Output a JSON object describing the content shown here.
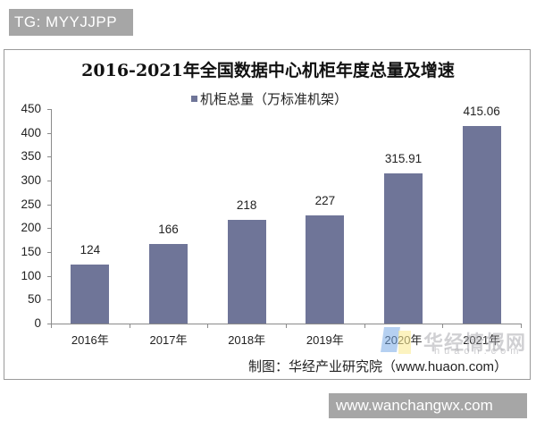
{
  "badges": {
    "top_left": "TG: MYYJJPP",
    "bottom_right": "www.wanchangwx.com"
  },
  "chart": {
    "title": "2016-2021年全国数据中心机柜年度总量及增速",
    "legend_label": "机柜总量（万标准机架）",
    "source": "制图：华经产业研究院（www.huaon.com）",
    "watermark_cn": "华经情报网",
    "watermark_en": "huaon.com",
    "bar_color": "#6f7598"
  },
  "chart_data": {
    "type": "bar",
    "title": "2016-2021年全国数据中心机柜年度总量及增速",
    "xlabel": "",
    "ylabel": "",
    "categories": [
      "2016年",
      "2017年",
      "2018年",
      "2019年",
      "2020年",
      "2021年"
    ],
    "series": [
      {
        "name": "机柜总量（万标准机架）",
        "values": [
          124,
          166,
          218,
          227,
          315.91,
          415.06
        ]
      }
    ],
    "value_labels": [
      "124",
      "166",
      "218",
      "227",
      "315.91",
      "415.06"
    ],
    "ylim": [
      0,
      450
    ],
    "yticks": [
      0,
      50,
      100,
      150,
      200,
      250,
      300,
      350,
      400,
      450
    ],
    "grid": false,
    "legend_position": "top",
    "annotations": [
      "制图：华经产业研究院（www.huaon.com）"
    ]
  }
}
